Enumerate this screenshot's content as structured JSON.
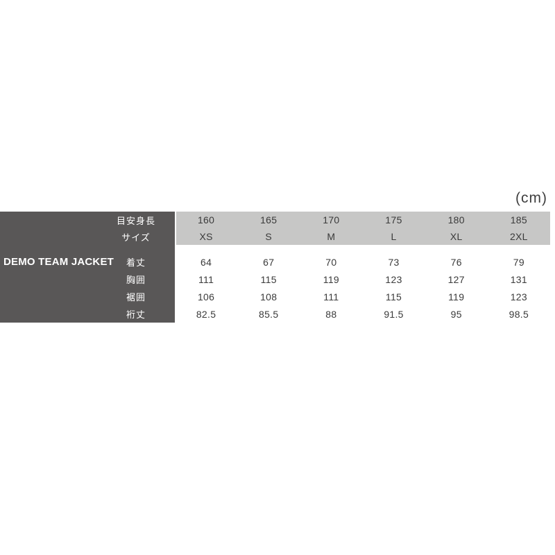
{
  "unit_label": "(cm)",
  "product": {
    "name": "DEMO TEAM JACKET"
  },
  "size_chart": {
    "header_rows": [
      {
        "label": "目安身長",
        "values": [
          "160",
          "165",
          "170",
          "175",
          "180",
          "185"
        ]
      },
      {
        "label": "サイズ",
        "values": [
          "XS",
          "S",
          "M",
          "L",
          "XL",
          "2XL"
        ]
      }
    ],
    "measurement_rows": [
      {
        "label": "着丈",
        "values": [
          "64",
          "67",
          "70",
          "73",
          "76",
          "79"
        ]
      },
      {
        "label": "胸囲",
        "values": [
          "111",
          "115",
          "119",
          "123",
          "127",
          "131"
        ]
      },
      {
        "label": "裾囲",
        "values": [
          "106",
          "108",
          "111",
          "115",
          "119",
          "123"
        ]
      },
      {
        "label": "裄丈",
        "values": [
          "82.5",
          "85.5",
          "88",
          "91.5",
          "95",
          "98.5"
        ]
      }
    ],
    "colors": {
      "panel_dark": "#595757",
      "header_gray": "#c7c7c6",
      "text_dark": "#3a3a3a",
      "text_light": "#ffffff"
    }
  },
  "chart_data": {
    "type": "table",
    "title": "DEMO TEAM JACKET size chart",
    "unit": "cm",
    "product": "DEMO TEAM JACKET",
    "column_headers": {
      "目安身長": [
        160,
        165,
        170,
        175,
        180,
        185
      ],
      "サイズ": [
        "XS",
        "S",
        "M",
        "L",
        "XL",
        "2XL"
      ]
    },
    "measurements": {
      "着丈": [
        64,
        67,
        70,
        73,
        76,
        79
      ],
      "胸囲": [
        111,
        115,
        119,
        123,
        127,
        131
      ],
      "裾囲": [
        106,
        108,
        111,
        115,
        119,
        123
      ],
      "裄丈": [
        82.5,
        85.5,
        88,
        91.5,
        95,
        98.5
      ]
    }
  }
}
